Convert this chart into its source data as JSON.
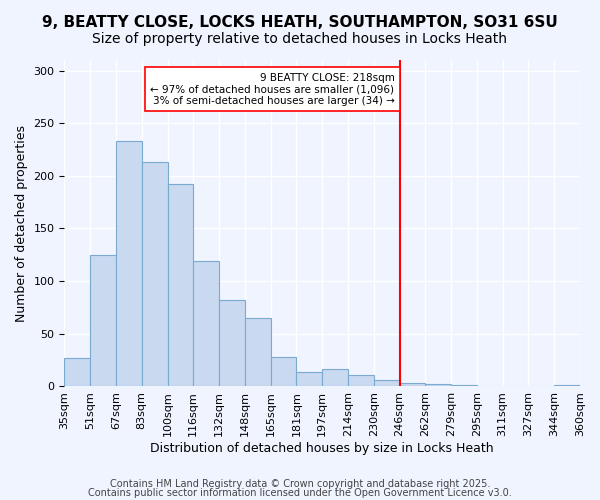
{
  "title_line1": "9, BEATTY CLOSE, LOCKS HEATH, SOUTHAMPTON, SO31 6SU",
  "title_line2": "Size of property relative to detached houses in Locks Heath",
  "xlabel": "Distribution of detached houses by size in Locks Heath",
  "ylabel": "Number of detached properties",
  "bar_labels": [
    "35sqm",
    "51sqm",
    "67sqm",
    "83sqm",
    "100sqm",
    "116sqm",
    "132sqm",
    "148sqm",
    "165sqm",
    "181sqm",
    "197sqm",
    "214sqm",
    "230sqm",
    "246sqm",
    "262sqm",
    "279sqm",
    "295sqm",
    "311sqm",
    "327sqm",
    "344sqm",
    "360sqm"
  ],
  "bar_values": [
    27,
    125,
    233,
    213,
    192,
    119,
    82,
    65,
    28,
    14,
    17,
    11,
    6,
    3,
    2,
    1,
    0,
    0,
    0,
    1
  ],
  "bar_color": "#c8d9f0",
  "bar_edge_color": "#7aaad0",
  "vline_x": 13,
  "vline_color": "red",
  "annotation_title": "9 BEATTY CLOSE: 218sqm",
  "annotation_line1": "← 97% of detached houses are smaller (1,096)",
  "annotation_line2": "3% of semi-detached houses are larger (34) →",
  "annotation_box_color": "white",
  "annotation_box_edge_color": "red",
  "ylim": [
    0,
    310
  ],
  "yticks": [
    0,
    50,
    100,
    150,
    200,
    250,
    300
  ],
  "footer_line1": "Contains HM Land Registry data © Crown copyright and database right 2025.",
  "footer_line2": "Contains public sector information licensed under the Open Government Licence v3.0.",
  "background_color": "#f0f4ff",
  "grid_color": "white",
  "title_fontsize": 11,
  "subtitle_fontsize": 10,
  "axis_label_fontsize": 9,
  "tick_fontsize": 8,
  "footer_fontsize": 7
}
